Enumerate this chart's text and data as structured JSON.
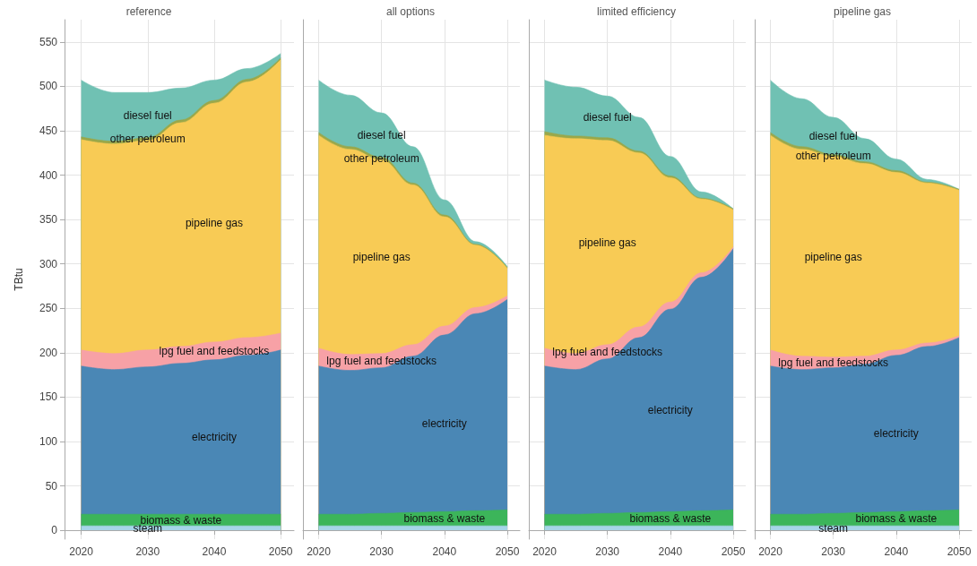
{
  "chart_data": [
    {
      "type": "area",
      "title": "reference",
      "ylabel": "TBtu",
      "x": [
        2020,
        2025,
        2030,
        2035,
        2040,
        2045,
        2050
      ],
      "xlim": [
        2017.5,
        2052
      ],
      "xticks": [
        2020,
        2030,
        2040,
        2050
      ],
      "ylim": [
        -10,
        575
      ],
      "yticks": [
        0,
        50,
        100,
        150,
        200,
        250,
        300,
        350,
        400,
        450,
        500,
        550
      ],
      "grid": true,
      "stacked": true,
      "series": [
        {
          "name": "steam",
          "color": "#a6d5e8",
          "values": [
            5,
            5,
            5,
            5,
            5,
            5,
            5
          ]
        },
        {
          "name": "biomass & waste",
          "color": "#3cb55a",
          "values": [
            13,
            13,
            13,
            13,
            13,
            13,
            13
          ]
        },
        {
          "name": "electricity",
          "color": "#4a87b5",
          "values": [
            167,
            163,
            166,
            170,
            174,
            179,
            185
          ]
        },
        {
          "name": "lpg fuel and feedstocks",
          "color": "#f7a1a6",
          "values": [
            18,
            18,
            19,
            19,
            20,
            20,
            19
          ]
        },
        {
          "name": "pipeline gas",
          "color": "#f8cb55",
          "values": [
            237,
            236,
            236,
            252,
            269,
            288,
            308
          ]
        },
        {
          "name": "other petroleum",
          "color": "#9aa84a",
          "values": [
            3,
            3,
            3,
            3,
            3,
            3,
            2
          ]
        },
        {
          "name": "diesel fuel",
          "color": "#70c1b3",
          "values": [
            64,
            55,
            51,
            36,
            23,
            12,
            5
          ]
        }
      ]
    },
    {
      "type": "area",
      "title": "all options",
      "x": [
        2020,
        2025,
        2030,
        2035,
        2040,
        2045,
        2050
      ],
      "xlim": [
        2017.5,
        2052
      ],
      "xticks": [
        2020,
        2030,
        2040,
        2050
      ],
      "ylim": [
        -10,
        575
      ],
      "yticks": [
        0,
        50,
        100,
        150,
        200,
        250,
        300,
        350,
        400,
        450,
        500,
        550
      ],
      "grid": true,
      "stacked": true,
      "tick_labels": "x",
      "series": [
        {
          "color": "#a6d5e8",
          "values": [
            5,
            5,
            5,
            5,
            5,
            5,
            5
          ]
        },
        {
          "name": "biomass & waste",
          "color": "#3cb55a",
          "values": [
            13,
            13,
            14,
            15,
            16,
            17,
            18
          ]
        },
        {
          "name": "electricity",
          "color": "#4a87b5",
          "values": [
            167,
            162,
            164,
            176,
            199,
            222,
            237
          ]
        },
        {
          "name": "lpg fuel and feedstocks",
          "color": "#f7a1a6",
          "values": [
            20,
            18,
            16,
            13,
            10,
            7,
            4
          ]
        },
        {
          "name": "pipeline gas",
          "color": "#f8cb55",
          "values": [
            240,
            231,
            218,
            180,
            123,
            70,
            31
          ]
        },
        {
          "name": "other petroleum",
          "color": "#9aa84a",
          "values": [
            3,
            3,
            3,
            2,
            2,
            1,
            1
          ]
        },
        {
          "name": "diesel fuel",
          "color": "#70c1b3",
          "values": [
            59,
            58,
            50,
            41,
            17,
            3,
            1
          ]
        }
      ]
    },
    {
      "type": "area",
      "title": "limited efficiency",
      "x": [
        2020,
        2025,
        2030,
        2035,
        2040,
        2045,
        2050
      ],
      "xlim": [
        2017.5,
        2052
      ],
      "xticks": [
        2020,
        2030,
        2040,
        2050
      ],
      "ylim": [
        -10,
        575
      ],
      "yticks": [
        0,
        50,
        100,
        150,
        200,
        250,
        300,
        350,
        400,
        450,
        500,
        550
      ],
      "grid": true,
      "stacked": true,
      "tick_labels": "x",
      "series": [
        {
          "color": "#a6d5e8",
          "values": [
            5,
            5,
            5,
            5,
            5,
            5,
            5
          ]
        },
        {
          "name": "biomass & waste",
          "color": "#3cb55a",
          "values": [
            13,
            13,
            14,
            15,
            16,
            17,
            18
          ]
        },
        {
          "name": "electricity",
          "color": "#4a87b5",
          "values": [
            167,
            163,
            174,
            197,
            228,
            263,
            294
          ]
        },
        {
          "name": "lpg fuel and feedstocks",
          "color": "#f7a1a6",
          "values": [
            20,
            18,
            16,
            12,
            8,
            5,
            2
          ]
        },
        {
          "name": "pipeline gas",
          "color": "#f8cb55",
          "values": [
            240,
            242,
            230,
            196,
            140,
            83,
            42
          ]
        },
        {
          "color": "#9aa84a",
          "values": [
            4,
            3,
            3,
            2,
            2,
            1,
            1
          ]
        },
        {
          "name": "diesel fuel",
          "color": "#70c1b3",
          "values": [
            58,
            55,
            47,
            38,
            22,
            7,
            0
          ]
        }
      ]
    },
    {
      "type": "area",
      "title": "pipeline gas",
      "x": [
        2020,
        2025,
        2030,
        2035,
        2040,
        2045,
        2050
      ],
      "xlim": [
        2017.5,
        2052
      ],
      "xticks": [
        2020,
        2030,
        2040,
        2050
      ],
      "ylim": [
        -10,
        575
      ],
      "yticks": [
        0,
        50,
        100,
        150,
        200,
        250,
        300,
        350,
        400,
        450,
        500,
        550
      ],
      "grid": true,
      "stacked": true,
      "tick_labels": "x",
      "series": [
        {
          "name": "steam",
          "color": "#a6d5e8",
          "values": [
            5,
            5,
            5,
            5,
            5,
            5,
            5
          ]
        },
        {
          "name": "biomass & waste",
          "color": "#3cb55a",
          "values": [
            13,
            13,
            14,
            15,
            16,
            17,
            18
          ]
        },
        {
          "name": "electricity",
          "color": "#4a87b5",
          "values": [
            167,
            163,
            164,
            167,
            176,
            185,
            194
          ]
        },
        {
          "name": "lpg fuel and feedstocks",
          "color": "#f7a1a6",
          "values": [
            18,
            15,
            12,
            9,
            6,
            4,
            2
          ]
        },
        {
          "name": "pipeline gas",
          "color": "#f8cb55",
          "values": [
            242,
            233,
            226,
            217,
            200,
            180,
            164
          ]
        },
        {
          "name": "other petroleum",
          "color": "#9aa84a",
          "values": [
            3,
            3,
            2,
            2,
            2,
            1,
            1
          ]
        },
        {
          "name": "diesel fuel",
          "color": "#70c1b3",
          "values": [
            59,
            54,
            42,
            26,
            13,
            3,
            0
          ]
        }
      ]
    }
  ]
}
